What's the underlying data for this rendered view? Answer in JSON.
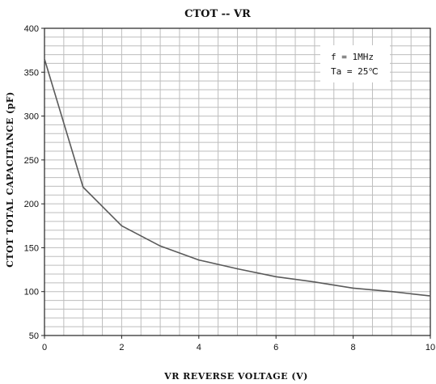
{
  "chart_data": {
    "type": "line",
    "title": "CTOT -- VR",
    "xlabel": "VR REVERSE VOLTAGE (V)",
    "ylabel": "CTOT TOTAL CAPACITANCE (pF)",
    "xlim": [
      0,
      10
    ],
    "ylim": [
      50,
      400
    ],
    "x_ticks": [
      "0",
      "2",
      "4",
      "6",
      "8",
      "10"
    ],
    "y_ticks": [
      "400",
      "350",
      "300",
      "250",
      "200",
      "150",
      "100",
      "50"
    ],
    "grid": true,
    "annotations": [
      "f = 1MHz",
      "Ta = 25℃"
    ],
    "series": [
      {
        "x": [
          0,
          1,
          2,
          3,
          4,
          5,
          6,
          7,
          8,
          9,
          10
        ],
        "y": [
          365,
          219,
          175,
          152,
          136,
          126,
          117,
          111,
          104,
          100,
          95
        ]
      }
    ],
    "colors": {
      "line": "#5a5a5a",
      "grid": "#bdbdbd",
      "axis": "#222222"
    }
  }
}
